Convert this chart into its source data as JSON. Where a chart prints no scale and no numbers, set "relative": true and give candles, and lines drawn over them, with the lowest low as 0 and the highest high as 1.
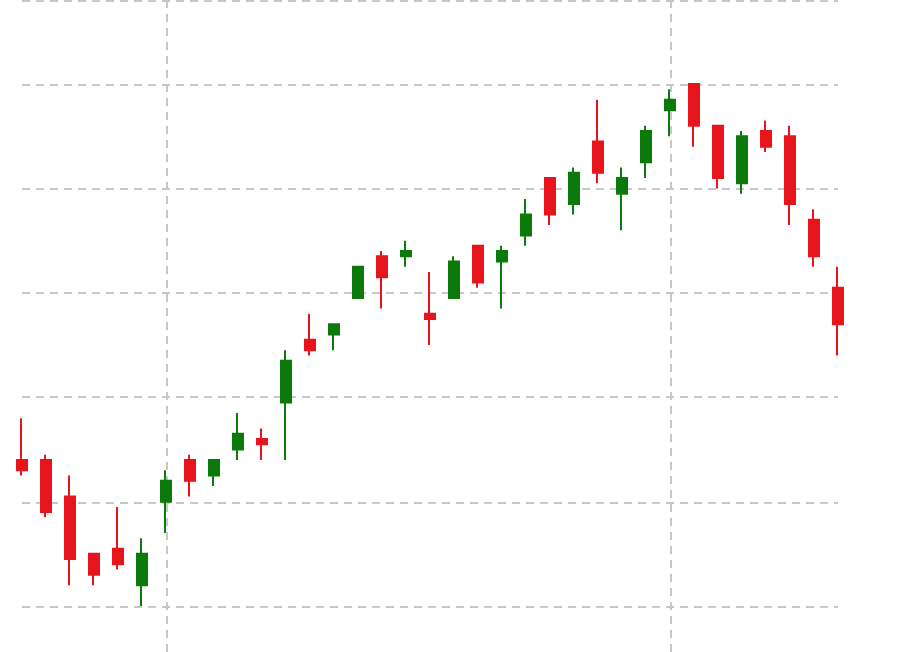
{
  "chart_data": {
    "type": "candlestick",
    "relative": true,
    "grid": true,
    "categories": [
      null,
      null,
      null,
      null,
      null,
      null,
      null,
      null,
      null,
      null,
      null,
      null,
      null,
      null,
      null,
      null,
      null,
      null,
      null,
      null,
      null,
      null,
      null,
      null,
      null,
      null,
      null,
      null,
      null,
      null,
      null,
      null,
      null,
      null,
      null
    ],
    "ohlc": [
      [
        0.28,
        0.36,
        0.25,
        0.26
      ],
      [
        0.28,
        0.29,
        0.17,
        0.18
      ],
      [
        0.21,
        0.25,
        0.04,
        0.09
      ],
      [
        0.1,
        0.1,
        0.04,
        0.06
      ],
      [
        0.11,
        0.19,
        0.07,
        0.08
      ],
      [
        0.04,
        0.13,
        0,
        0.1
      ],
      [
        0.2,
        0.26,
        0.14,
        0.24
      ],
      [
        0.28,
        0.29,
        0.21,
        0.24
      ],
      [
        0.25,
        0.28,
        0.23,
        0.28
      ],
      [
        0.3,
        0.37,
        0.28,
        0.33
      ],
      [
        0.32,
        0.34,
        0.28,
        0.31
      ],
      [
        0.39,
        0.49,
        0.28,
        0.47
      ],
      [
        0.51,
        0.56,
        0.48,
        0.49
      ],
      [
        0.52,
        0.54,
        0.49,
        0.54
      ],
      [
        0.59,
        0.65,
        0.59,
        0.65
      ],
      [
        0.67,
        0.68,
        0.57,
        0.63
      ],
      [
        0.67,
        0.7,
        0.65,
        0.68
      ],
      [
        0.56,
        0.64,
        0.5,
        0.55
      ],
      [
        0.59,
        0.67,
        0.59,
        0.66
      ],
      [
        0.69,
        0.69,
        0.61,
        0.62
      ],
      [
        0.66,
        0.69,
        0.57,
        0.68
      ],
      [
        0.71,
        0.78,
        0.69,
        0.75
      ],
      [
        0.82,
        0.82,
        0.73,
        0.75
      ],
      [
        0.77,
        0.84,
        0.75,
        0.83
      ],
      [
        0.89,
        0.97,
        0.81,
        0.83
      ],
      [
        0.79,
        0.84,
        0.72,
        0.82
      ],
      [
        0.85,
        0.92,
        0.82,
        0.91
      ],
      [
        0.95,
        0.99,
        0.9,
        0.97
      ],
      [
        1,
        1,
        0.88,
        0.92
      ],
      [
        0.92,
        0.92,
        0.8,
        0.82
      ],
      [
        0.81,
        0.91,
        0.79,
        0.9
      ],
      [
        0.91,
        0.93,
        0.87,
        0.88
      ],
      [
        0.9,
        0.92,
        0.73,
        0.77
      ],
      [
        0.74,
        0.76,
        0.65,
        0.67
      ],
      [
        0.61,
        0.65,
        0.48,
        0.54
      ]
    ],
    "colors": [
      "#e8141c",
      "#e8141c",
      "#e8141c",
      "#e8141c",
      "#e8141c",
      "#0b7a0b",
      "#0b7a0b",
      "#e8141c",
      "#0b7a0b",
      "#0b7a0b",
      "#e8141c",
      "#0b7a0b",
      "#e8141c",
      "#0b7a0b",
      "#0b7a0b",
      "#e8141c",
      "#0b7a0b",
      "#e8141c",
      "#0b7a0b",
      "#e8141c",
      "#0b7a0b",
      "#0b7a0b",
      "#e8141c",
      "#0b7a0b",
      "#e8141c",
      "#0b7a0b",
      "#0b7a0b",
      "#0b7a0b",
      "#e8141c",
      "#e8141c",
      "#0b7a0b",
      "#e8141c",
      "#e8141c",
      "#e8141c",
      "#e8141c"
    ]
  }
}
